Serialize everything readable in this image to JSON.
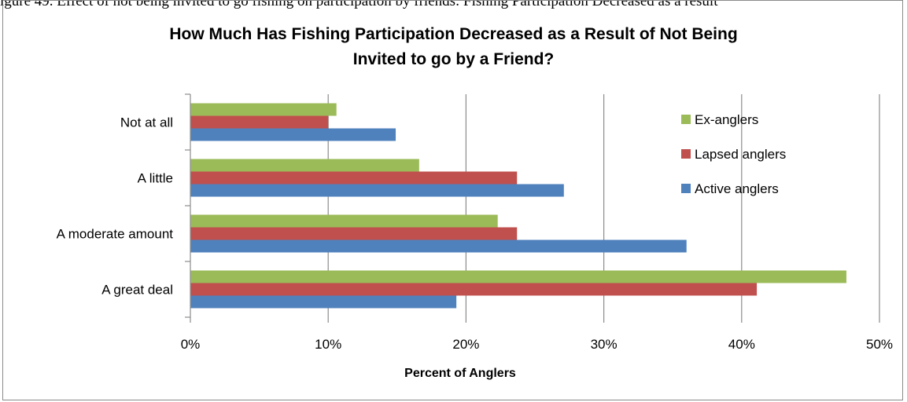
{
  "caption_fragment": "igure 49. Effect of not being invited to go fishing on participation by friends: Fishing Participation Decreased as a result",
  "chart_data": {
    "type": "bar",
    "orientation": "horizontal",
    "title_lines": [
      "How Much Has Fishing Participation Decreased as a Result of Not Being",
      "Invited to go by a Friend?"
    ],
    "categories": [
      "Not at all",
      "A little",
      "A moderate amount",
      "A great deal"
    ],
    "series": [
      {
        "name": "Ex-anglers",
        "color": "#9BBB59",
        "values": [
          10.6,
          16.6,
          22.3,
          47.6
        ]
      },
      {
        "name": "Lapsed anglers",
        "color": "#C0504D",
        "values": [
          10.0,
          23.7,
          23.7,
          41.1
        ]
      },
      {
        "name": "Active anglers",
        "color": "#4F81BD",
        "values": [
          14.9,
          27.1,
          36.0,
          19.3
        ]
      }
    ],
    "xlim": [
      0,
      50
    ],
    "x_ticks": [
      "0%",
      "10%",
      "20%",
      "30%",
      "40%",
      "50%"
    ],
    "xlabel": "Percent of Anglers",
    "ylabel": "",
    "grid": "vertical",
    "legend_position": "right-top"
  }
}
